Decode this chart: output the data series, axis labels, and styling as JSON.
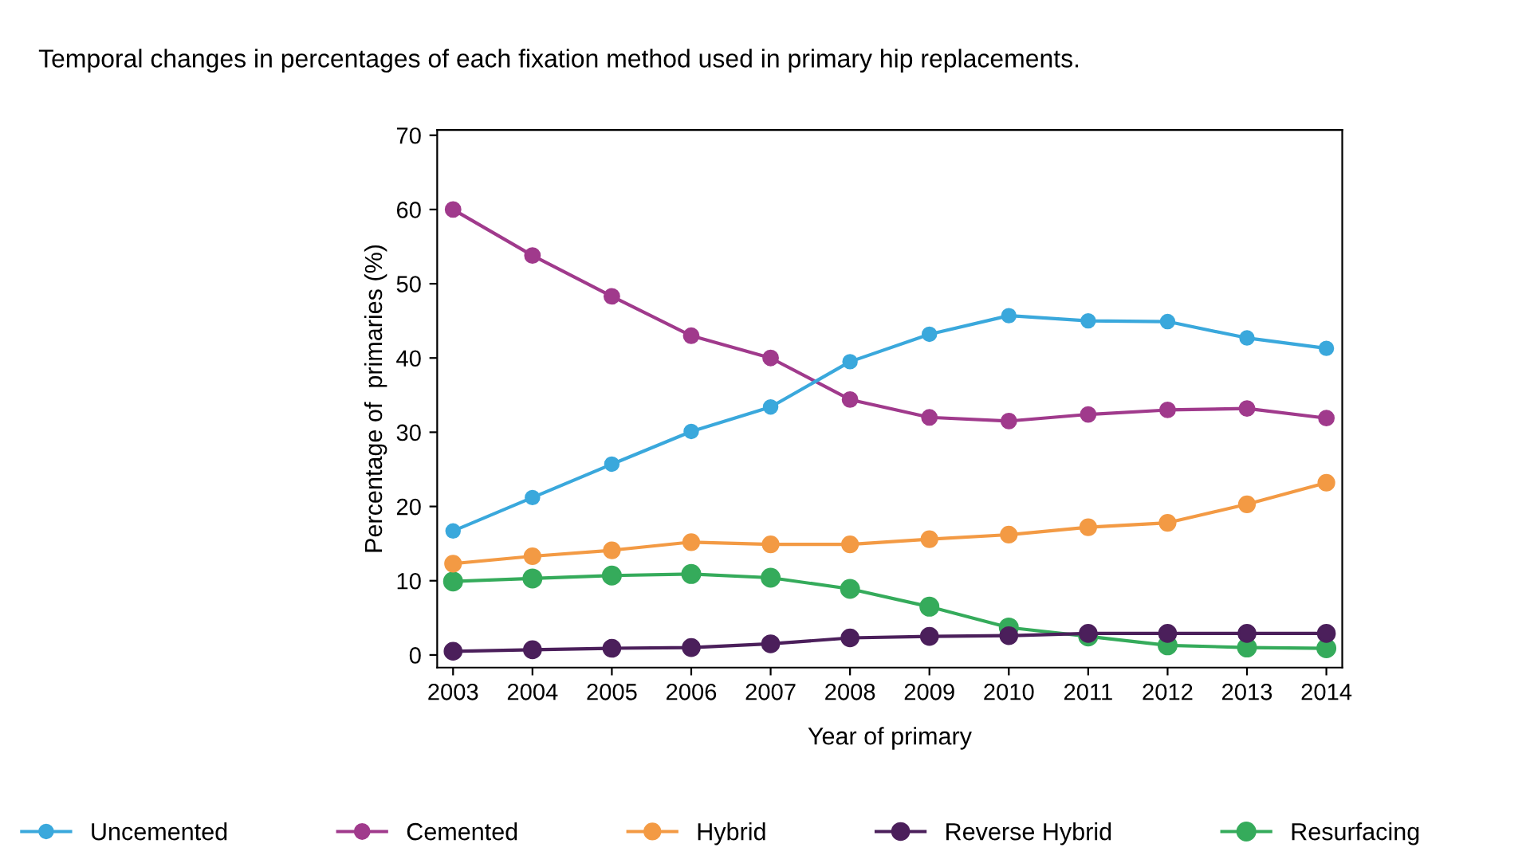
{
  "chart_data": {
    "type": "line",
    "title": "Temporal changes in percentages of each fixation method used in primary hip replacements.",
    "xlabel": "Year of primary",
    "ylabel": "Percentage of  primaries (%)",
    "x": [
      2003,
      2004,
      2005,
      2006,
      2007,
      2008,
      2009,
      2010,
      2011,
      2012,
      2013,
      2014
    ],
    "series": [
      {
        "name": "Uncemented",
        "color": "#3aa8dc",
        "values": [
          16.7,
          21.2,
          25.7,
          30.1,
          33.4,
          39.5,
          43.2,
          45.7,
          45.0,
          44.9,
          42.7,
          41.3
        ]
      },
      {
        "name": "Cemented",
        "color": "#a03a8c",
        "values": [
          60,
          53.8,
          48.3,
          43.0,
          40.0,
          34.4,
          32.0,
          31.5,
          32.4,
          33.0,
          33.2,
          31.9
        ]
      },
      {
        "name": "Hybrid",
        "color": "#f39a44",
        "values": [
          12.3,
          13.3,
          14.1,
          15.2,
          14.9,
          14.9,
          15.6,
          16.2,
          17.2,
          17.8,
          20.3,
          23.2
        ]
      },
      {
        "name": "Reverse Hybrid",
        "color": "#4b1f5b",
        "values": [
          0.5,
          0.7,
          0.9,
          1.0,
          1.5,
          2.3,
          2.5,
          2.6,
          2.9,
          2.9,
          2.9,
          2.9
        ]
      },
      {
        "name": "Resurfacing",
        "color": "#35ab5b",
        "values": [
          9.9,
          10.3,
          10.7,
          10.9,
          10.4,
          8.9,
          6.5,
          3.7,
          2.5,
          1.3,
          1.0,
          0.9
        ]
      }
    ],
    "xlim": [
      2002.8,
      2014.2
    ],
    "ylim": [
      -1.7,
      70.7
    ],
    "xticks": [
      2003,
      2004,
      2005,
      2006,
      2007,
      2008,
      2009,
      2010,
      2011,
      2012,
      2013,
      2014
    ],
    "yticks": [
      0,
      10,
      20,
      30,
      40,
      50,
      60,
      70
    ],
    "grid": false,
    "legend": "bottom",
    "marker": "circle",
    "line_style": "solid"
  }
}
